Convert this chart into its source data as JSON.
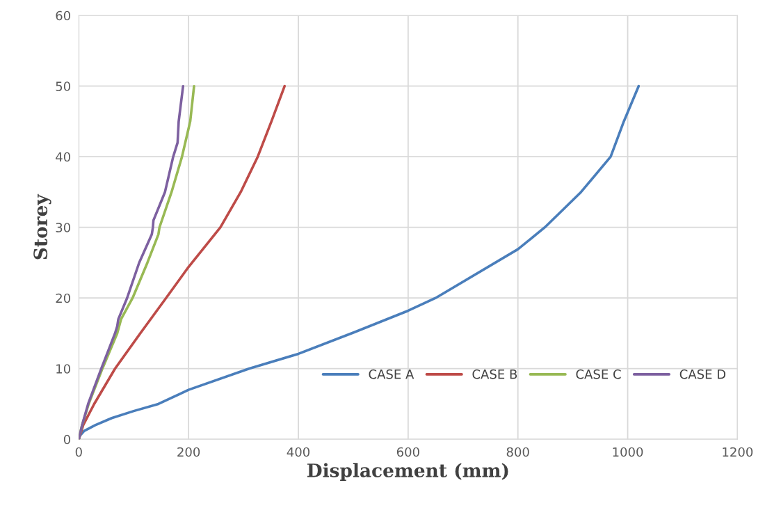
{
  "chart_data": {
    "type": "line",
    "xlabel": "Displacement (mm)",
    "ylabel": "Storey",
    "xlim": [
      0,
      1200
    ],
    "ylim": [
      0,
      60
    ],
    "xticks": [
      0,
      200,
      400,
      600,
      800,
      1000,
      1200
    ],
    "yticks": [
      0,
      10,
      20,
      30,
      40,
      50,
      60
    ],
    "grid": true,
    "legend": "bottom right",
    "marker": "none",
    "line_style": "solid",
    "series": [
      {
        "name": "CASE A",
        "color": "#4a7ebb",
        "x": [
          0,
          2,
          10,
          30,
          60,
          100,
          145,
          200,
          310,
          400,
          500,
          600,
          650,
          800,
          849,
          915,
          969,
          993,
          1020
        ],
        "values": [
          0,
          0.5,
          1.2,
          2,
          3,
          4,
          5,
          7,
          10,
          12.1,
          15.1,
          18.2,
          20,
          26.9,
          30,
          35,
          40,
          45,
          50
        ]
      },
      {
        "name": "CASE B",
        "color": "#be4b48",
        "x": [
          0,
          8,
          28,
          66,
          112,
          159,
          200,
          258,
          295,
          326,
          351,
          375
        ],
        "values": [
          0,
          2,
          5,
          10,
          15,
          20,
          24.4,
          30,
          35,
          40,
          45,
          50
        ]
      },
      {
        "name": "CASE C",
        "color": "#98b954",
        "x": [
          0,
          6,
          18,
          43,
          70,
          77,
          98,
          125,
          145,
          147,
          169,
          188,
          197,
          203,
          210
        ],
        "values": [
          0,
          2,
          5,
          10,
          15,
          17,
          20,
          25,
          29,
          30,
          35,
          40,
          43,
          45,
          50
        ]
      },
      {
        "name": "CASE D",
        "color": "#7d60a0",
        "x": [
          0,
          6,
          17,
          41,
          66,
          70,
          72,
          88,
          110,
          133,
          135,
          136,
          157,
          172,
          180,
          182,
          190
        ],
        "values": [
          0,
          2,
          5,
          10,
          15,
          16,
          17,
          20,
          25,
          29,
          30,
          31,
          35,
          40,
          42,
          45,
          50
        ]
      }
    ]
  }
}
